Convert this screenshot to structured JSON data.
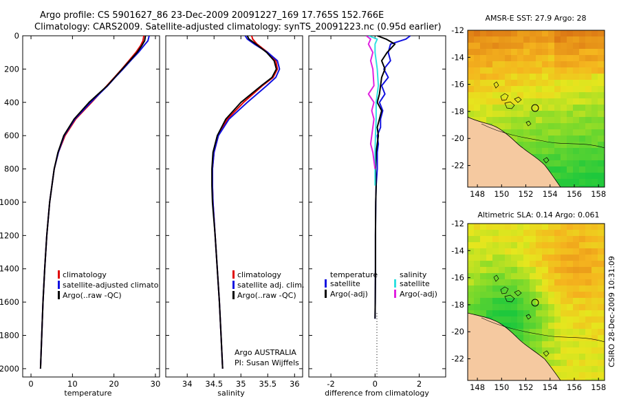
{
  "header": {
    "line1": "Argo profile: CS 5901627_86 23-Dec-2009 20091227_169 17.765S 152.766E",
    "line2": "Climatology: CARS2009. Satellite-adjusted climatology: synTS_20091223.nc (0.95d earlier)"
  },
  "side_label": "CSIRO 28-Dec-2009 10:31:09",
  "colors": {
    "climatology": "#e00000",
    "satellite_adj": "#1010e0",
    "argo": "#000000",
    "cyan": "#30e0e0",
    "magenta": "#e020e0",
    "land": "#f5c9a0"
  },
  "chart_data": [
    {
      "type": "line",
      "id": "temperature",
      "xlabel": "temperature",
      "ylabel": "",
      "xlim": [
        -2,
        31
      ],
      "ylim": [
        2050,
        0
      ],
      "xticks": [
        "0",
        "10",
        "20",
        "30"
      ],
      "xtick_values": [
        0,
        10,
        20,
        30
      ],
      "yticks": [
        "0",
        "200",
        "400",
        "600",
        "800",
        "1000",
        "1200",
        "1400",
        "1600",
        "1800",
        "2000"
      ],
      "ytick_values": [
        0,
        200,
        400,
        600,
        800,
        1000,
        1200,
        1400,
        1600,
        1800,
        2000
      ],
      "legend": [
        "climatology",
        "satellite-adjusted climatology",
        "Argo(..raw -QC)"
      ],
      "series": [
        {
          "name": "climatology",
          "color": "#e00000",
          "depth": [
            0,
            30,
            60,
            100,
            150,
            200,
            250,
            300,
            400,
            500,
            600,
            700,
            800,
            1000,
            1200,
            1400,
            1600,
            1800,
            2000
          ],
          "values": [
            27.2,
            27.0,
            26.4,
            25.3,
            23.6,
            21.9,
            20.1,
            18.3,
            14.6,
            10.8,
            8.2,
            6.6,
            5.6,
            4.5,
            3.8,
            3.3,
            2.9,
            2.6,
            2.3
          ]
        },
        {
          "name": "satellite-adjusted climatology",
          "color": "#1010e0",
          "depth": [
            0,
            30,
            60,
            100,
            150,
            200,
            250,
            300,
            400,
            500,
            600,
            700,
            800,
            1000,
            1200,
            1400,
            1600,
            1800,
            2000
          ],
          "values": [
            28.5,
            28.2,
            27.2,
            25.9,
            24.0,
            22.2,
            20.3,
            18.5,
            14.4,
            10.6,
            8.0,
            6.6,
            5.6,
            4.5,
            3.8,
            3.3,
            2.9,
            2.6,
            2.3
          ]
        },
        {
          "name": "Argo(..raw -QC)",
          "color": "#000000",
          "depth": [
            0,
            30,
            60,
            100,
            150,
            200,
            250,
            300,
            400,
            500,
            600,
            700,
            800,
            1000,
            1200,
            1400,
            1600,
            1800,
            2000
          ],
          "values": [
            27.6,
            27.4,
            26.7,
            25.6,
            23.8,
            22.0,
            20.2,
            18.4,
            14.0,
            10.4,
            7.9,
            6.5,
            5.6,
            4.5,
            3.8,
            3.3,
            2.9,
            2.6,
            2.3
          ]
        }
      ]
    },
    {
      "type": "line",
      "id": "salinity",
      "xlabel": "salinity",
      "xlim": [
        33.6,
        36.15
      ],
      "ylim": [
        2050,
        0
      ],
      "xticks": [
        "34",
        "34.5",
        "35",
        "35.5",
        "36"
      ],
      "xtick_values": [
        34,
        34.5,
        35,
        35.5,
        36
      ],
      "legend": [
        "climatology",
        "satellite adj. clim.",
        "Argo(..raw -QC)"
      ],
      "annotation": [
        "Argo AUSTRALIA",
        "PI: Susan Wijffels"
      ],
      "series": [
        {
          "name": "climatology",
          "color": "#e00000",
          "depth": [
            0,
            20,
            50,
            100,
            150,
            200,
            250,
            300,
            400,
            500,
            600,
            700,
            800,
            900,
            1000,
            1200,
            1400,
            1600,
            1800,
            2000
          ],
          "values": [
            35.2,
            35.22,
            35.3,
            35.5,
            35.65,
            35.68,
            35.6,
            35.4,
            35.05,
            34.75,
            34.58,
            34.5,
            34.47,
            34.47,
            34.48,
            34.52,
            34.56,
            34.6,
            34.63,
            34.66
          ]
        },
        {
          "name": "satellite adj. clim.",
          "color": "#1010e0",
          "depth": [
            0,
            20,
            50,
            100,
            150,
            200,
            250,
            300,
            400,
            500,
            600,
            700,
            800,
            900,
            1000,
            1200,
            1400,
            1600,
            1800,
            2000
          ],
          "values": [
            35.08,
            35.12,
            35.25,
            35.5,
            35.68,
            35.72,
            35.65,
            35.48,
            35.12,
            34.78,
            34.58,
            34.5,
            34.47,
            34.47,
            34.48,
            34.52,
            34.56,
            34.6,
            34.63,
            34.66
          ]
        },
        {
          "name": "Argo(..raw -QC)",
          "color": "#000000",
          "depth": [
            0,
            20,
            50,
            100,
            150,
            200,
            250,
            300,
            400,
            500,
            600,
            700,
            800,
            900,
            1000,
            1200,
            1400,
            1600,
            1800,
            2000
          ],
          "values": [
            35.12,
            35.15,
            35.28,
            35.48,
            35.62,
            35.66,
            35.58,
            35.38,
            35.0,
            34.72,
            34.56,
            34.48,
            34.46,
            34.46,
            34.47,
            34.52,
            34.56,
            34.6,
            34.63,
            34.66
          ]
        }
      ]
    },
    {
      "type": "line",
      "id": "difference",
      "xlabel": "difference from climatology",
      "xlim": [
        -3,
        3.2
      ],
      "ylim": [
        2050,
        0
      ],
      "xticks": [
        "-2",
        "0",
        "2"
      ],
      "xtick_values": [
        -2,
        0,
        2
      ],
      "legend_temperature": [
        "temperature",
        "satellite",
        "Argo(-adj)"
      ],
      "legend_salinity": [
        "salinity",
        "satellite",
        "Argo(-adj)"
      ],
      "series": [
        {
          "name": "temperature satellite",
          "color": "#1010e0",
          "depth": [
            0,
            20,
            50,
            100,
            150,
            200,
            250,
            300,
            350,
            400,
            450,
            500,
            550,
            600,
            650,
            700,
            800,
            900,
            1000,
            1200,
            1400,
            1600,
            1700
          ],
          "values": [
            1.6,
            1.4,
            0.7,
            0.6,
            0.7,
            0.4,
            0.6,
            0.3,
            0.45,
            0.2,
            0.35,
            0.25,
            0.25,
            0.1,
            0.15,
            0.1,
            0.1,
            0.05,
            0.03,
            0.02,
            0.02,
            0.01,
            0.0
          ]
        },
        {
          "name": "temperature Argo(-adj)",
          "color": "#000000",
          "depth": [
            0,
            20,
            50,
            100,
            150,
            200,
            250,
            300,
            350,
            400,
            450,
            500,
            550,
            600,
            700,
            800,
            900,
            1000,
            1200,
            1400,
            1600,
            1700
          ],
          "values": [
            0.1,
            0.5,
            0.9,
            0.55,
            0.3,
            0.45,
            0.3,
            0.25,
            0.2,
            0.1,
            0.3,
            0.2,
            0.1,
            0.15,
            0.05,
            0.02,
            0.05,
            0.03,
            0.02,
            0.02,
            0.01,
            0.0
          ]
        },
        {
          "name": "salinity satellite",
          "color": "#30e0e0",
          "depth": [
            0,
            20,
            50,
            100,
            150,
            200,
            300,
            400,
            500,
            600,
            700,
            800,
            900
          ],
          "values": [
            -0.3,
            0.1,
            0.0,
            0.0,
            0.05,
            0.1,
            0.15,
            0.05,
            0.05,
            0.02,
            0.0,
            0.0,
            0.0
          ]
        },
        {
          "name": "salinity Argo(-adj)",
          "color": "#e020e0",
          "depth": [
            0,
            20,
            50,
            100,
            150,
            200,
            300,
            350,
            400,
            450,
            500,
            550,
            600,
            650,
            700,
            750,
            800
          ],
          "values": [
            -0.4,
            -0.2,
            -0.3,
            -0.1,
            -0.2,
            -0.1,
            -0.05,
            -0.3,
            -0.05,
            -0.15,
            -0.05,
            -0.1,
            -0.15,
            -0.2,
            -0.1,
            -0.05,
            0.0
          ]
        }
      ]
    },
    {
      "type": "heatmap",
      "id": "sst_map",
      "title": "AMSR-E SST: 27.9 Argo: 28",
      "xticks": [
        "148",
        "150",
        "152",
        "154",
        "156",
        "158"
      ],
      "xtick_values": [
        148,
        150,
        152,
        154,
        156,
        158
      ],
      "yticks": [
        "-12",
        "-14",
        "-16",
        "-18",
        "-20",
        "-22"
      ],
      "ytick_values": [
        -12,
        -14,
        -16,
        -18,
        -20,
        -22
      ],
      "xlim": [
        147.2,
        158.5
      ],
      "ylim": [
        -12,
        -23.6
      ],
      "argo_position": [
        152.766,
        -17.765
      ]
    },
    {
      "type": "heatmap",
      "id": "sla_map",
      "title": "Altimetric SLA: 0.14 Argo: 0.061",
      "xticks": [
        "148",
        "150",
        "152",
        "154",
        "156",
        "158"
      ],
      "xtick_values": [
        148,
        150,
        152,
        154,
        156,
        158
      ],
      "yticks": [
        "-12",
        "-14",
        "-16",
        "-18",
        "-20",
        "-22"
      ],
      "ytick_values": [
        -12,
        -14,
        -16,
        -18,
        -20,
        -22
      ],
      "xlim": [
        147.2,
        158.5
      ],
      "ylim": [
        -12,
        -23.6
      ],
      "argo_position": [
        152.766,
        -17.765
      ]
    }
  ]
}
